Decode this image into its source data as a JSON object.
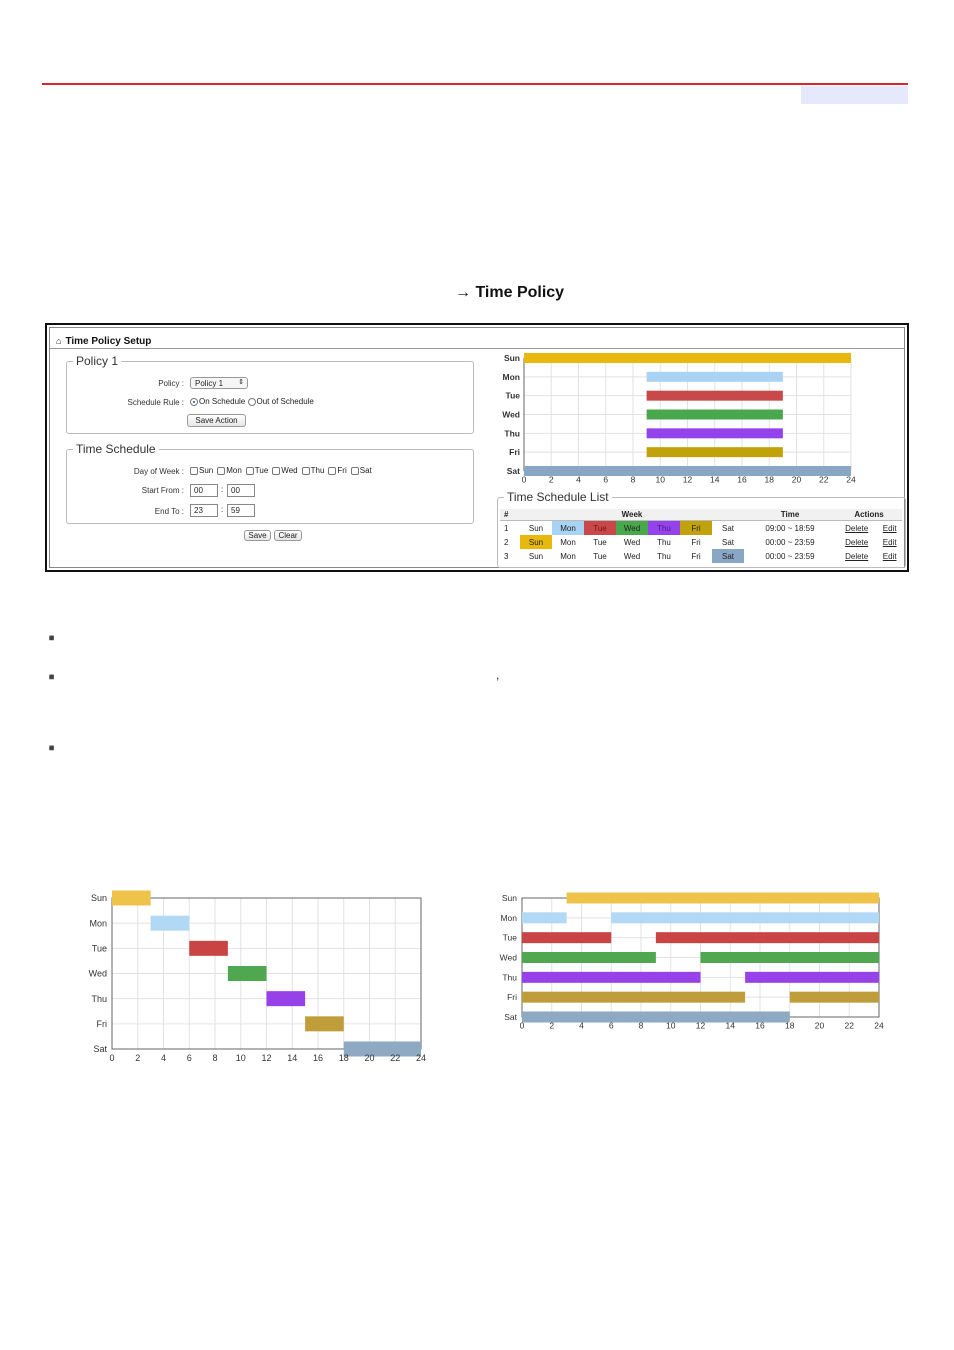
{
  "heading": "→ Time Policy",
  "panel": {
    "title": "Time Policy Setup",
    "policy_box": {
      "legend": "Policy 1",
      "policy_label": "Policy :",
      "policy_value": "Policy 1",
      "rule_label": "Schedule Rule :",
      "rule_on": "On Schedule",
      "rule_off": "Out of Schedule",
      "rule_selected": "On Schedule",
      "save_action": "Save Action"
    },
    "schedule_box": {
      "legend": "Time Schedule",
      "dow_label": "Day of Week :",
      "days": [
        "Sun",
        "Mon",
        "Tue",
        "Wed",
        "Thu",
        "Fri",
        "Sat"
      ],
      "start_label": "Start From :",
      "start_h": "00",
      "start_m": "00",
      "end_label": "End To :",
      "end_h": "23",
      "end_m": "59",
      "colon": ":"
    },
    "save": "Save",
    "clear": "Clear",
    "list": {
      "legend": "Time Schedule List",
      "headers": {
        "num": "#",
        "week": "Week",
        "time": "Time",
        "actions": "Actions"
      },
      "rows": [
        {
          "num": "1",
          "days": [
            "Sun",
            "Mon",
            "Tue",
            "Wed",
            "Thu",
            "Fri",
            "Sat"
          ],
          "active": [
            false,
            true,
            true,
            true,
            true,
            true,
            false
          ],
          "time": "09:00 ~ 18:59",
          "delete": "Delete",
          "edit": "Edit"
        },
        {
          "num": "2",
          "days": [
            "Sun",
            "Mon",
            "Tue",
            "Wed",
            "Thu",
            "Fri",
            "Sat"
          ],
          "active": [
            true,
            false,
            false,
            false,
            false,
            false,
            false
          ],
          "time": "00:00 ~ 23:59",
          "delete": "Delete",
          "edit": "Edit"
        },
        {
          "num": "3",
          "days": [
            "Sun",
            "Mon",
            "Tue",
            "Wed",
            "Thu",
            "Fri",
            "Sat"
          ],
          "active": [
            false,
            false,
            false,
            false,
            false,
            false,
            true
          ],
          "time": "00:00 ~ 23:59",
          "delete": "Delete",
          "edit": "Edit"
        }
      ]
    }
  },
  "bullets": [
    "",
    "",
    ""
  ],
  "comma": ",",
  "colors": {
    "Sun": "#e8b90c",
    "Mon": "#a9d3f5",
    "Tue": "#c9494b",
    "Wed": "#4aa84c",
    "Thu": "#9443ec",
    "Fri": "#c2a20a",
    "Sat": "#8aa6c5",
    "Sun_b": "#efc34a",
    "Mon_b": "#b1d8f4",
    "Tue_b": "#c94545",
    "Wed_b": "#4fa84f",
    "Thu_b": "#9741e8",
    "Fri_b": "#bf9d3a",
    "Sat_b": "#8eaac3"
  },
  "chart_data": [
    {
      "type": "gantt",
      "categories": [
        "Sun",
        "Mon",
        "Tue",
        "Wed",
        "Thu",
        "Fri",
        "Sat"
      ],
      "xticks": [
        0,
        2,
        4,
        6,
        8,
        10,
        12,
        14,
        16,
        18,
        20,
        22,
        24
      ],
      "xlim": [
        0,
        24
      ],
      "grid": true,
      "bars": [
        {
          "day": "Sun",
          "start": 0,
          "end": 24
        },
        {
          "day": "Mon",
          "start": 9,
          "end": 19
        },
        {
          "day": "Tue",
          "start": 9,
          "end": 19
        },
        {
          "day": "Wed",
          "start": 9,
          "end": 19
        },
        {
          "day": "Thu",
          "start": 9,
          "end": 19
        },
        {
          "day": "Fri",
          "start": 9,
          "end": 19
        },
        {
          "day": "Sat",
          "start": 0,
          "end": 24
        }
      ]
    },
    {
      "type": "gantt",
      "categories": [
        "Sun",
        "Mon",
        "Tue",
        "Wed",
        "Thu",
        "Fri",
        "Sat"
      ],
      "xticks": [
        0,
        2,
        4,
        6,
        8,
        10,
        12,
        14,
        16,
        18,
        20,
        22,
        24
      ],
      "xlim": [
        0,
        24
      ],
      "grid": true,
      "bars": [
        {
          "day": "Sun",
          "start": 0,
          "end": 3
        },
        {
          "day": "Mon",
          "start": 3,
          "end": 6
        },
        {
          "day": "Tue",
          "start": 6,
          "end": 9
        },
        {
          "day": "Wed",
          "start": 9,
          "end": 12
        },
        {
          "day": "Thu",
          "start": 12,
          "end": 15
        },
        {
          "day": "Fri",
          "start": 15,
          "end": 18
        },
        {
          "day": "Sat",
          "start": 18,
          "end": 24
        }
      ]
    },
    {
      "type": "gantt",
      "categories": [
        "Sun",
        "Mon",
        "Tue",
        "Wed",
        "Thu",
        "Fri",
        "Sat"
      ],
      "xticks": [
        0,
        2,
        4,
        6,
        8,
        10,
        12,
        14,
        16,
        18,
        20,
        22,
        24
      ],
      "xlim": [
        0,
        24
      ],
      "grid": true,
      "bars": [
        {
          "day": "Sun",
          "start": 3,
          "end": 24
        },
        {
          "day": "Mon",
          "start": 0,
          "end": 3
        },
        {
          "day": "Mon",
          "start": 6,
          "end": 24
        },
        {
          "day": "Tue",
          "start": 0,
          "end": 6
        },
        {
          "day": "Tue",
          "start": 9,
          "end": 24
        },
        {
          "day": "Wed",
          "start": 0,
          "end": 9
        },
        {
          "day": "Wed",
          "start": 12,
          "end": 24
        },
        {
          "day": "Thu",
          "start": 0,
          "end": 12
        },
        {
          "day": "Thu",
          "start": 15,
          "end": 24
        },
        {
          "day": "Fri",
          "start": 0,
          "end": 15
        },
        {
          "day": "Fri",
          "start": 18,
          "end": 24
        },
        {
          "day": "Sat",
          "start": 0,
          "end": 18
        }
      ]
    }
  ]
}
